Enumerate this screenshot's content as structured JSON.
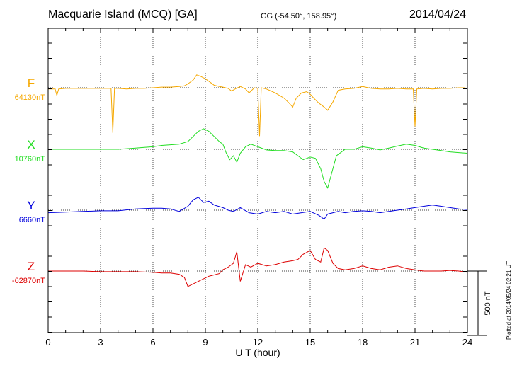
{
  "header": {
    "title": "Macquarie Island (MCQ)  [GA]",
    "coords": "GG (-54.50°, 158.95°)",
    "date": "2014/04/24"
  },
  "plotted_note": "Plotted at 2014/05/24 02:21  UT",
  "chart_data": {
    "type": "line",
    "title": "Macquarie Island (MCQ)  [GA]",
    "xlabel": "U T (hour)",
    "ylabel": "",
    "xlim": [
      0,
      24
    ],
    "x_ticks": [
      0,
      3,
      6,
      9,
      12,
      15,
      18,
      21,
      24
    ],
    "x_tick_labels": [
      "0",
      "3",
      "6",
      "9",
      "12",
      "15",
      "18",
      "21",
      "24"
    ],
    "grid": true,
    "scale_bar": {
      "label": "500 nT",
      "value_nT": 500
    },
    "series": [
      {
        "name": "F",
        "baseline_label": "64130nT",
        "baseline_nT": 64130,
        "color": "#f5a800",
        "x": [
          0,
          0.4,
          0.5,
          0.6,
          1,
          2,
          3,
          3.6,
          3.7,
          3.8,
          4,
          4.5,
          5,
          5.5,
          6,
          6.5,
          7,
          7.5,
          7.8,
          8,
          8.3,
          8.5,
          8.7,
          9,
          9.3,
          9.5,
          9.8,
          10,
          10.3,
          10.5,
          10.7,
          11,
          11.3,
          11.5,
          11.8,
          12,
          12.1,
          12.2,
          12.5,
          13,
          13.5,
          13.8,
          14,
          14.2,
          14.5,
          14.8,
          15,
          15.2,
          15.5,
          15.8,
          16,
          16.3,
          16.6,
          17,
          17.5,
          18,
          18.5,
          19,
          19.5,
          20,
          20.5,
          20.9,
          21,
          21.1,
          21.5,
          22,
          22.5,
          23,
          23.5,
          23.8,
          24
        ],
        "values": [
          -10,
          -10,
          -60,
          -10,
          -5,
          -5,
          -5,
          -5,
          -350,
          -5,
          -5,
          -10,
          -5,
          -5,
          0,
          5,
          5,
          10,
          15,
          30,
          60,
          100,
          90,
          70,
          40,
          20,
          10,
          5,
          -5,
          -25,
          -10,
          10,
          -10,
          -40,
          0,
          -5,
          -375,
          0,
          -10,
          -40,
          -80,
          -120,
          -150,
          -80,
          -40,
          -30,
          -50,
          -80,
          -120,
          -150,
          -175,
          -110,
          -20,
          -10,
          -5,
          10,
          -5,
          -10,
          -10,
          -5,
          -10,
          -10,
          -300,
          -10,
          -5,
          -10,
          -5,
          -5,
          0,
          0,
          -5
        ]
      },
      {
        "name": "X",
        "baseline_label": "10760nT",
        "baseline_nT": 10760,
        "color": "#22dd22",
        "x": [
          0,
          1,
          2,
          3,
          4,
          4.5,
          5,
          5.5,
          6,
          6.5,
          7,
          7.5,
          8,
          8.3,
          8.6,
          8.9,
          9.2,
          9.5,
          9.8,
          10,
          10.2,
          10.4,
          10.6,
          10.8,
          11,
          11.3,
          11.6,
          12,
          12.5,
          13,
          13.5,
          14,
          14.3,
          14.6,
          15,
          15.3,
          15.6,
          15.8,
          16,
          16.2,
          16.5,
          17,
          17.5,
          18,
          18.5,
          19,
          19.5,
          20,
          20.5,
          21,
          21.5,
          22,
          22.5,
          23,
          23.5,
          24
        ],
        "values": [
          0,
          0,
          0,
          0,
          0,
          5,
          10,
          15,
          20,
          30,
          35,
          40,
          60,
          100,
          140,
          160,
          140,
          100,
          60,
          40,
          -30,
          -80,
          -50,
          -100,
          -30,
          20,
          40,
          20,
          -5,
          -10,
          -10,
          -20,
          -50,
          -80,
          -60,
          -70,
          -150,
          -250,
          -300,
          -200,
          -50,
          0,
          0,
          20,
          10,
          -5,
          10,
          25,
          40,
          30,
          10,
          0,
          -10,
          -20,
          -25,
          -30
        ]
      },
      {
        "name": "Y",
        "baseline_label": "6660nT",
        "baseline_nT": 6660,
        "color": "#0000dd",
        "x": [
          0,
          1,
          2,
          3,
          4,
          5,
          6,
          6.5,
          7,
          7.5,
          8,
          8.3,
          8.6,
          8.9,
          9.2,
          9.5,
          10,
          10.3,
          10.6,
          11,
          11.5,
          12,
          12.5,
          13,
          13.5,
          14,
          14.5,
          15,
          15.5,
          15.8,
          16,
          16.3,
          16.6,
          17,
          17.5,
          18,
          18.5,
          19,
          19.5,
          20,
          20.5,
          21,
          21.5,
          22,
          22.5,
          23,
          23.5,
          24
        ],
        "values": [
          -20,
          -15,
          -10,
          -5,
          -5,
          10,
          15,
          15,
          10,
          -10,
          30,
          80,
          100,
          60,
          70,
          40,
          20,
          0,
          -10,
          20,
          -20,
          -30,
          -10,
          -20,
          -10,
          -30,
          -20,
          -10,
          -40,
          -70,
          -30,
          -20,
          -10,
          -20,
          -10,
          -5,
          -10,
          -20,
          -10,
          0,
          10,
          20,
          30,
          40,
          30,
          20,
          10,
          5
        ]
      },
      {
        "name": "Z",
        "baseline_label": "-62870nT",
        "baseline_nT": -62870,
        "color": "#dd0000",
        "x": [
          0,
          1,
          2,
          3,
          4,
          5,
          6,
          6.5,
          7,
          7.5,
          7.8,
          8,
          8.3,
          8.6,
          8.9,
          9.2,
          9.5,
          9.8,
          10,
          10.3,
          10.6,
          10.8,
          11,
          11.3,
          11.6,
          12,
          12.5,
          13,
          13.5,
          14,
          14.3,
          14.6,
          15,
          15.3,
          15.6,
          15.8,
          16,
          16.3,
          16.6,
          17,
          17.5,
          18,
          18.5,
          19,
          19.5,
          20,
          20.5,
          21,
          21.5,
          22,
          22.5,
          23,
          23.5,
          24
        ],
        "values": [
          0,
          0,
          0,
          -5,
          -5,
          -5,
          -10,
          -15,
          -15,
          -25,
          -50,
          -120,
          -100,
          -80,
          -60,
          -40,
          -30,
          -20,
          10,
          30,
          60,
          150,
          -80,
          50,
          30,
          60,
          40,
          50,
          70,
          80,
          90,
          130,
          160,
          90,
          70,
          180,
          160,
          60,
          20,
          10,
          20,
          40,
          20,
          10,
          30,
          40,
          20,
          10,
          0,
          0,
          0,
          5,
          0,
          -10
        ]
      }
    ]
  }
}
